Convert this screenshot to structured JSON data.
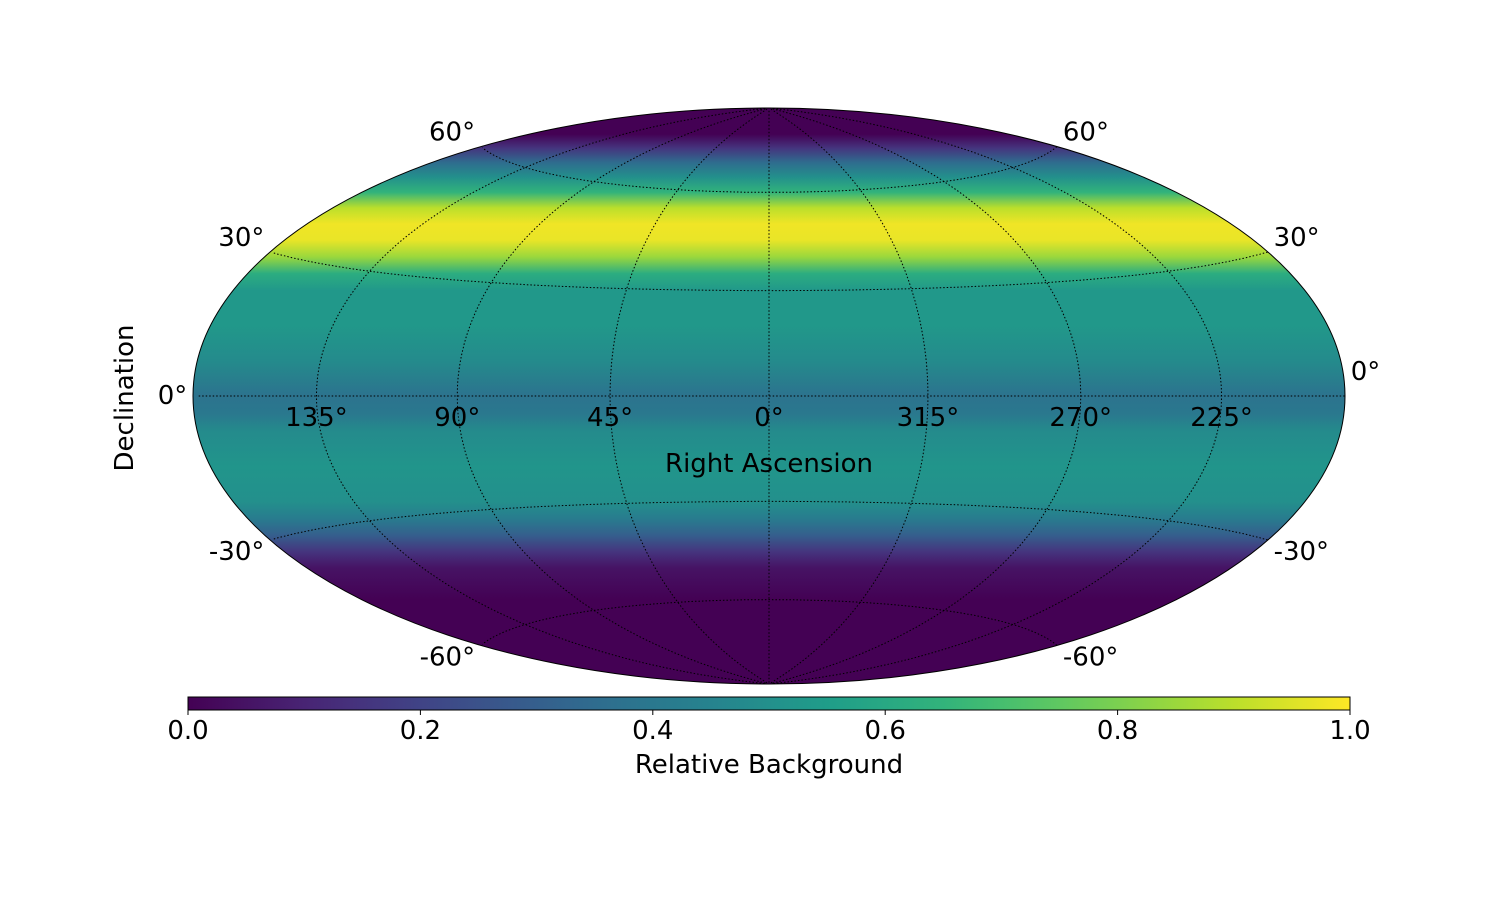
{
  "chart_data": {
    "type": "heatmap",
    "projection": "hammer",
    "grid": true,
    "xlabel": "Right Ascension",
    "ylabel": "Declination",
    "ra_ticks": [
      {
        "value": 135,
        "label": "135°"
      },
      {
        "value": 90,
        "label": "90°"
      },
      {
        "value": 45,
        "label": "45°"
      },
      {
        "value": 0,
        "label": "0°"
      },
      {
        "value": 315,
        "label": "315°"
      },
      {
        "value": 270,
        "label": "270°"
      },
      {
        "value": 225,
        "label": "225°"
      }
    ],
    "dec_ticks": [
      {
        "value": 60,
        "label": "60°"
      },
      {
        "value": 30,
        "label": "30°"
      },
      {
        "value": 0,
        "label": "0°"
      },
      {
        "value": -30,
        "label": "-30°"
      },
      {
        "value": -60,
        "label": "-60°"
      }
    ],
    "ra_range": [
      -180,
      180
    ],
    "dec_range": [
      -90,
      90
    ],
    "dec_profile": {
      "dec": [
        -90,
        -60,
        -50,
        -45,
        -40,
        -35,
        -30,
        -20,
        -10,
        -5,
        0,
        10,
        20,
        30,
        35,
        40,
        45,
        50,
        55,
        60,
        65,
        70,
        75,
        80,
        90
      ],
      "value": [
        0.0,
        0.0,
        0.05,
        0.15,
        0.3,
        0.42,
        0.5,
        0.52,
        0.48,
        0.4,
        0.38,
        0.48,
        0.53,
        0.53,
        0.62,
        0.85,
        0.97,
        0.98,
        0.9,
        0.65,
        0.5,
        0.35,
        0.15,
        0.0,
        0.0
      ]
    },
    "colorbar": {
      "label": "Relative Background",
      "colormap": "viridis",
      "range": [
        0.0,
        1.0
      ],
      "ticks": [
        {
          "value": 0.0,
          "label": "0.0"
        },
        {
          "value": 0.2,
          "label": "0.2"
        },
        {
          "value": 0.4,
          "label": "0.4"
        },
        {
          "value": 0.6,
          "label": "0.6"
        },
        {
          "value": 0.8,
          "label": "0.8"
        },
        {
          "value": 1.0,
          "label": "1.0"
        }
      ]
    }
  }
}
